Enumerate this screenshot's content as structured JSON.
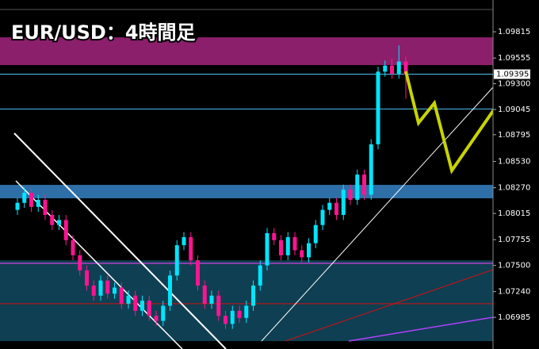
{
  "chart_data": {
    "type": "candlestick",
    "title": "EUR/USD：4時間足",
    "open": [
      1.0805,
      1.0812,
      1.0822,
      1.0808,
      1.0815,
      1.08,
      1.079,
      1.0795,
      1.0775,
      1.076,
      1.0745,
      1.073,
      1.072,
      1.0735,
      1.0722,
      1.0728,
      1.0712,
      1.072,
      1.0705,
      1.0715,
      1.07,
      1.0695,
      1.071,
      1.074,
      1.077,
      1.0778,
      1.0755,
      1.073,
      1.0712,
      1.072,
      1.07,
      1.0692,
      1.0705,
      1.0698,
      1.071,
      1.073,
      1.075,
      1.0782,
      1.0775,
      1.076,
      1.0778,
      1.0765,
      1.0758,
      1.0772,
      1.079,
      1.0805,
      1.0812,
      1.08,
      1.0825,
      1.0815,
      1.084,
      1.082,
      1.087,
      1.0942,
      1.0948,
      1.094,
      1.0952
    ],
    "high": [
      1.0817,
      1.0827,
      1.0827,
      1.082,
      1.082,
      1.0805,
      1.08,
      1.08,
      1.078,
      1.0765,
      1.075,
      1.0735,
      1.074,
      1.074,
      1.0733,
      1.0733,
      1.0725,
      1.0725,
      1.072,
      1.072,
      1.0705,
      1.0715,
      1.0745,
      1.0775,
      1.0783,
      1.0783,
      1.076,
      1.0735,
      1.0725,
      1.0725,
      1.0705,
      1.071,
      1.071,
      1.0715,
      1.0735,
      1.0755,
      1.0787,
      1.0787,
      1.078,
      1.0783,
      1.0783,
      1.077,
      1.0777,
      1.0795,
      1.081,
      1.0817,
      1.0817,
      1.083,
      1.083,
      1.0845,
      1.0845,
      1.0875,
      1.0947,
      1.0953,
      1.0955,
      1.0968,
      1.0957
    ],
    "low": [
      1.08,
      1.0807,
      1.0803,
      1.0803,
      1.0795,
      1.0785,
      1.0785,
      1.077,
      1.0755,
      1.074,
      1.0725,
      1.0715,
      1.0715,
      1.0717,
      1.0717,
      1.0707,
      1.0707,
      1.07,
      1.07,
      1.0695,
      1.069,
      1.069,
      1.0705,
      1.0735,
      1.0765,
      1.075,
      1.0725,
      1.0707,
      1.0707,
      1.0695,
      1.0687,
      1.0687,
      1.0693,
      1.0693,
      1.0705,
      1.0725,
      1.0745,
      1.077,
      1.0755,
      1.0755,
      1.076,
      1.0753,
      1.0753,
      1.0767,
      1.0785,
      1.08,
      1.0795,
      1.0795,
      1.081,
      1.081,
      1.0815,
      1.0815,
      1.0865,
      1.0937,
      1.0935,
      1.0935,
      1.0915
    ],
    "close": [
      1.0812,
      1.0822,
      1.0808,
      1.0815,
      1.08,
      1.079,
      1.0795,
      1.0775,
      1.076,
      1.0745,
      1.073,
      1.072,
      1.0735,
      1.0722,
      1.0728,
      1.0712,
      1.072,
      1.0705,
      1.0715,
      1.07,
      1.0695,
      1.071,
      1.074,
      1.077,
      1.0778,
      1.0755,
      1.073,
      1.0712,
      1.072,
      1.07,
      1.0692,
      1.0705,
      1.0698,
      1.071,
      1.073,
      1.075,
      1.0782,
      1.0775,
      1.076,
      1.0778,
      1.0765,
      1.0758,
      1.0772,
      1.079,
      1.0805,
      1.0812,
      1.08,
      1.0825,
      1.0815,
      1.084,
      1.082,
      1.087,
      1.0942,
      1.0948,
      1.094,
      1.0952,
      1.0939
    ],
    "up_color": "#00e5ff",
    "down_color": "#ff1493",
    "ylim": [
      1.0675,
      1.1013
    ],
    "yticks": [
      1.09815,
      1.09555,
      {
        "value": 1.093,
        "label": "1.09300"
      },
      1.09045,
      1.08795,
      {
        "value": 1.0853,
        "label": "1.08530"
      },
      {
        "value": 1.0827,
        "label": "1.08270"
      },
      1.08015,
      1.07755,
      {
        "value": 1.075,
        "label": "1.07500"
      },
      {
        "value": 1.0724,
        "label": "1.07240"
      },
      1.06985
    ],
    "last_price": 1.09395,
    "zones": [
      {
        "from": 1.09485,
        "to": 1.0976,
        "color": "#8b1f6b"
      },
      {
        "from": 1.08165,
        "to": 1.08298,
        "color": "#2e6fa8"
      },
      {
        "from": 1.0675,
        "to": 1.0755,
        "color": "#0f3f52"
      }
    ],
    "hlines": [
      {
        "value": 1.09395,
        "color": "#4fc3f7"
      },
      {
        "value": 1.0905,
        "color": "#4fc3f7"
      },
      {
        "value": 1.0752,
        "color": "#ff40ff"
      },
      {
        "value": 1.0712,
        "color": "#d01010"
      }
    ]
  }
}
